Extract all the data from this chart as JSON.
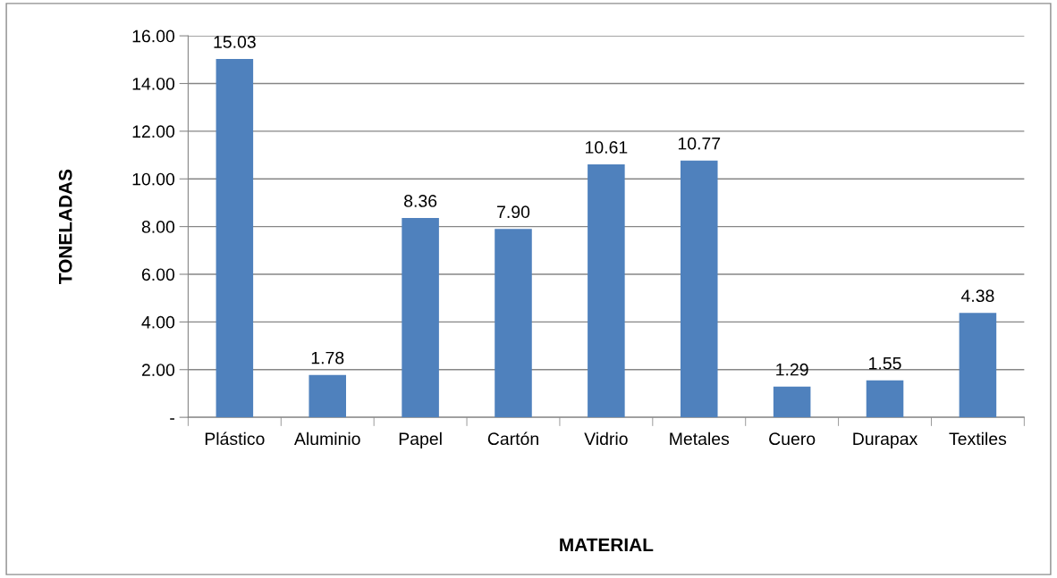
{
  "chart_data": {
    "type": "bar",
    "xlabel": "MATERIAL",
    "ylabel": "TONELADAS",
    "categories": [
      "Plástico",
      "Aluminio",
      "Papel",
      "Cartón",
      "Vidrio",
      "Metales",
      "Cuero",
      "Durapax",
      "Textiles"
    ],
    "values": [
      15.03,
      1.78,
      8.36,
      7.9,
      10.61,
      10.77,
      1.29,
      1.55,
      4.38
    ],
    "value_labels": [
      "15.03",
      "1.78",
      "8.36",
      "7.90",
      "10.61",
      "10.77",
      "1.29",
      "1.55",
      "4.38"
    ],
    "color": "#4f81bd",
    "ylim": [
      0,
      16
    ],
    "yticks": [
      {
        "value": 0,
        "label": "-"
      },
      {
        "value": 2,
        "label": "2.00"
      },
      {
        "value": 4,
        "label": "4.00"
      },
      {
        "value": 6,
        "label": "6.00"
      },
      {
        "value": 8,
        "label": "8.00"
      },
      {
        "value": 10,
        "label": "10.00"
      },
      {
        "value": 12,
        "label": "12.00"
      },
      {
        "value": 14,
        "label": "14.00"
      },
      {
        "value": 16,
        "label": "16.00"
      }
    ],
    "grid": "y",
    "legend": false
  }
}
